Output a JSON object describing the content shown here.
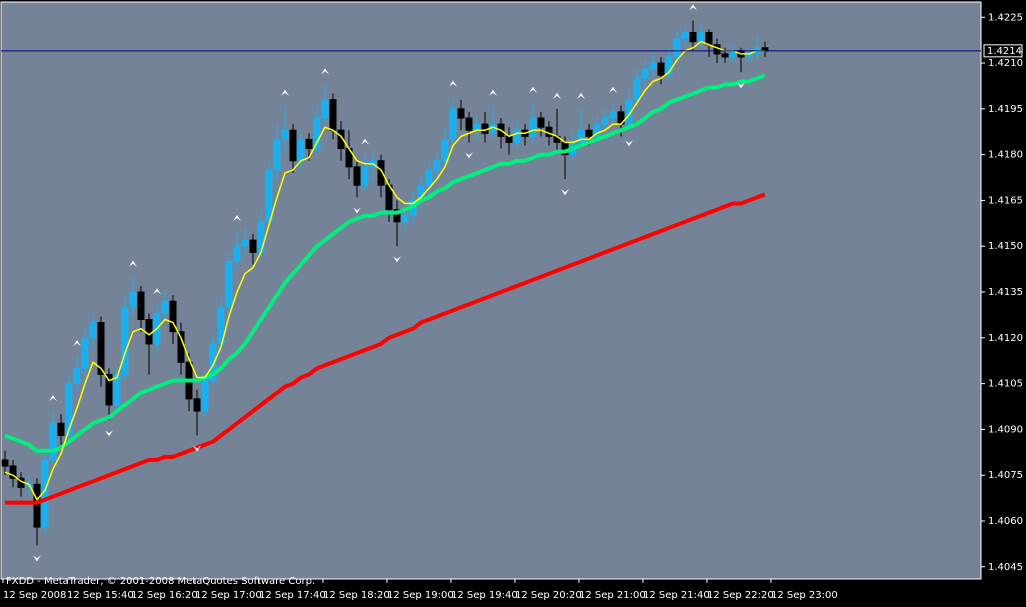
{
  "chart_data": {
    "type": "candlestick",
    "footer": "FXDD - MetaTrader, © 2001-2008 MetaQuotes Software Corp.",
    "x_labels": [
      "12 Sep 2008",
      "12 Sep 15:40",
      "12 Sep 16:20",
      "12 Sep 17:00",
      "12 Sep 17:40",
      "12 Sep 18:20",
      "12 Sep 19:00",
      "12 Sep 19:40",
      "12 Sep 20:20",
      "12 Sep 21:00",
      "12 Sep 21:40",
      "12 Sep 22:20",
      "12 Sep 23:00"
    ],
    "ylim": [
      1.4041,
      1.423
    ],
    "yticks": [
      1.4225,
      {
        "value": 1.421,
        "label": "1.4210"
      },
      1.4195,
      {
        "value": 1.418,
        "label": "1.4180"
      },
      1.4165,
      {
        "value": 1.415,
        "label": "1.4150"
      },
      1.4135,
      {
        "value": 1.412,
        "label": "1.4120"
      },
      1.4105,
      {
        "value": 1.409,
        "label": "1.4090"
      },
      1.4075,
      {
        "value": 1.406,
        "label": "1.4060"
      },
      1.4045
    ],
    "current_price": 1.4214,
    "current_price_color": "#000080",
    "up_color": "#1ab0f0",
    "down_color": "#000000",
    "ohlc": [
      [
        1.408,
        1.4083,
        1.4075,
        1.4078
      ],
      [
        1.4078,
        1.408,
        1.4071,
        1.4074
      ],
      [
        1.4074,
        1.4076,
        1.4068,
        1.4071
      ],
      [
        1.4071,
        1.4075,
        1.4068,
        1.4072
      ],
      [
        1.4072,
        1.4074,
        1.4052,
        1.4058
      ],
      [
        1.4058,
        1.4083,
        1.4056,
        1.408
      ],
      [
        1.408,
        1.4096,
        1.4078,
        1.4092
      ],
      [
        1.4092,
        1.4095,
        1.4085,
        1.4088
      ],
      [
        1.4088,
        1.4108,
        1.4086,
        1.4105
      ],
      [
        1.4105,
        1.4114,
        1.4102,
        1.411
      ],
      [
        1.411,
        1.4124,
        1.4107,
        1.412
      ],
      [
        1.412,
        1.4128,
        1.4116,
        1.4125
      ],
      [
        1.4125,
        1.4127,
        1.4104,
        1.4108
      ],
      [
        1.4108,
        1.411,
        1.4093,
        1.4098
      ],
      [
        1.4098,
        1.4111,
        1.4095,
        1.4108
      ],
      [
        1.4108,
        1.4134,
        1.4106,
        1.413
      ],
      [
        1.413,
        1.414,
        1.4127,
        1.4135
      ],
      [
        1.4135,
        1.4137,
        1.4122,
        1.4126
      ],
      [
        1.4126,
        1.4128,
        1.4108,
        1.4118
      ],
      [
        1.4118,
        1.4131,
        1.4115,
        1.4128
      ],
      [
        1.4128,
        1.4136,
        1.4125,
        1.4132
      ],
      [
        1.4132,
        1.4134,
        1.4118,
        1.4122
      ],
      [
        1.4122,
        1.4125,
        1.4108,
        1.4112
      ],
      [
        1.4112,
        1.4115,
        1.4096,
        1.41
      ],
      [
        1.41,
        1.4103,
        1.4088,
        1.4096
      ],
      [
        1.4096,
        1.4109,
        1.4094,
        1.4106
      ],
      [
        1.4106,
        1.4121,
        1.4104,
        1.4118
      ],
      [
        1.4118,
        1.4133,
        1.4115,
        1.413
      ],
      [
        1.413,
        1.4148,
        1.4128,
        1.4145
      ],
      [
        1.4145,
        1.4155,
        1.4142,
        1.415
      ],
      [
        1.415,
        1.4156,
        1.4147,
        1.4152
      ],
      [
        1.4152,
        1.4154,
        1.4144,
        1.4148
      ],
      [
        1.4148,
        1.4162,
        1.4146,
        1.4158
      ],
      [
        1.4158,
        1.4178,
        1.4156,
        1.4175
      ],
      [
        1.4175,
        1.419,
        1.4172,
        1.4185
      ],
      [
        1.4185,
        1.4196,
        1.418,
        1.4188
      ],
      [
        1.4188,
        1.419,
        1.4174,
        1.4178
      ],
      [
        1.4178,
        1.4188,
        1.4175,
        1.4185
      ],
      [
        1.4185,
        1.4187,
        1.4178,
        1.4182
      ],
      [
        1.4182,
        1.4196,
        1.418,
        1.4192
      ],
      [
        1.4192,
        1.4203,
        1.4189,
        1.4198
      ],
      [
        1.4198,
        1.42,
        1.4185,
        1.4188
      ],
      [
        1.4188,
        1.4191,
        1.4178,
        1.4182
      ],
      [
        1.4182,
        1.4188,
        1.4172,
        1.4176
      ],
      [
        1.4176,
        1.4178,
        1.4166,
        1.417
      ],
      [
        1.417,
        1.418,
        1.4168,
        1.4176
      ],
      [
        1.4176,
        1.4181,
        1.4172,
        1.4178
      ],
      [
        1.4178,
        1.418,
        1.4166,
        1.417
      ],
      [
        1.417,
        1.4172,
        1.4158,
        1.4162
      ],
      [
        1.4162,
        1.4165,
        1.415,
        1.4158
      ],
      [
        1.4158,
        1.4163,
        1.4155,
        1.416
      ],
      [
        1.416,
        1.4168,
        1.4157,
        1.4165
      ],
      [
        1.4165,
        1.4173,
        1.4162,
        1.417
      ],
      [
        1.417,
        1.4178,
        1.4167,
        1.4175
      ],
      [
        1.4175,
        1.4181,
        1.4172,
        1.4178
      ],
      [
        1.4178,
        1.4189,
        1.4176,
        1.4185
      ],
      [
        1.4185,
        1.4199,
        1.4183,
        1.4195
      ],
      [
        1.4195,
        1.4198,
        1.4188,
        1.4192
      ],
      [
        1.4192,
        1.4194,
        1.4184,
        1.4188
      ],
      [
        1.4188,
        1.4193,
        1.4185,
        1.419
      ],
      [
        1.419,
        1.4194,
        1.4184,
        1.4187
      ],
      [
        1.4187,
        1.4196,
        1.4185,
        1.419
      ],
      [
        1.419,
        1.4192,
        1.4182,
        1.4186
      ],
      [
        1.4186,
        1.4189,
        1.418,
        1.4184
      ],
      [
        1.4184,
        1.4191,
        1.4182,
        1.4188
      ],
      [
        1.4188,
        1.419,
        1.4183,
        1.4186
      ],
      [
        1.4186,
        1.4197,
        1.4184,
        1.4192
      ],
      [
        1.4192,
        1.4194,
        1.4186,
        1.4189
      ],
      [
        1.4189,
        1.4191,
        1.4183,
        1.4186
      ],
      [
        1.4186,
        1.4195,
        1.4181,
        1.4184
      ],
      [
        1.4184,
        1.4186,
        1.4172,
        1.418
      ],
      [
        1.418,
        1.4187,
        1.4178,
        1.4184
      ],
      [
        1.4184,
        1.4195,
        1.4182,
        1.4188
      ],
      [
        1.4188,
        1.419,
        1.4183,
        1.4186
      ],
      [
        1.4186,
        1.4193,
        1.4184,
        1.419
      ],
      [
        1.419,
        1.4195,
        1.4188,
        1.4192
      ],
      [
        1.4192,
        1.4197,
        1.419,
        1.4194
      ],
      [
        1.4194,
        1.4196,
        1.4186,
        1.419
      ],
      [
        1.419,
        1.4201,
        1.4188,
        1.4198
      ],
      [
        1.4198,
        1.4208,
        1.4196,
        1.4205
      ],
      [
        1.4205,
        1.4211,
        1.4202,
        1.4208
      ],
      [
        1.4208,
        1.4213,
        1.4205,
        1.421
      ],
      [
        1.421,
        1.4212,
        1.4203,
        1.4206
      ],
      [
        1.4206,
        1.4215,
        1.4204,
        1.4212
      ],
      [
        1.4212,
        1.4221,
        1.421,
        1.4218
      ],
      [
        1.4218,
        1.4222,
        1.4215,
        1.422
      ],
      [
        1.422,
        1.4224,
        1.4214,
        1.4217
      ],
      [
        1.4217,
        1.4223,
        1.4215,
        1.422
      ],
      [
        1.422,
        1.4221,
        1.4212,
        1.4216
      ],
      [
        1.4216,
        1.4218,
        1.421,
        1.4213
      ],
      [
        1.4213,
        1.4215,
        1.421,
        1.4212
      ],
      [
        1.4212,
        1.4216,
        1.421,
        1.4214
      ],
      [
        1.4214,
        1.4215,
        1.4207,
        1.4212
      ],
      [
        1.4212,
        1.4215,
        1.421,
        1.4213
      ],
      [
        1.4213,
        1.4219,
        1.4211,
        1.4215
      ],
      [
        1.4215,
        1.4217,
        1.4212,
        1.4214
      ]
    ],
    "fractals_up": [
      6,
      9,
      16,
      19,
      29,
      35,
      40,
      45,
      56,
      61,
      66,
      69,
      72,
      76,
      86
    ],
    "fractals_down": [
      4,
      13,
      24,
      44,
      49,
      58,
      70,
      78,
      92
    ],
    "series": [
      {
        "color": "#ff0000",
        "width": 4,
        "values": [
          1.4066,
          1.4066,
          1.4066,
          1.4066,
          1.4066,
          1.4067,
          1.4068,
          1.4069,
          1.407,
          1.4071,
          1.4072,
          1.4073,
          1.4074,
          1.4075,
          1.4076,
          1.4077,
          1.4078,
          1.4079,
          1.408,
          1.408,
          1.4081,
          1.4081,
          1.4082,
          1.4083,
          1.4084,
          1.4085,
          1.4086,
          1.4088,
          1.409,
          1.4092,
          1.4094,
          1.4096,
          1.4098,
          1.41,
          1.4102,
          1.4104,
          1.4105,
          1.4107,
          1.4108,
          1.411,
          1.4111,
          1.4112,
          1.4113,
          1.4114,
          1.4115,
          1.4116,
          1.4117,
          1.4118,
          1.412,
          1.4121,
          1.4122,
          1.4123,
          1.4125,
          1.4126,
          1.4127,
          1.4128,
          1.4129,
          1.413,
          1.4131,
          1.4132,
          1.4133,
          1.4134,
          1.4135,
          1.4136,
          1.4137,
          1.4138,
          1.4139,
          1.414,
          1.4141,
          1.4142,
          1.4143,
          1.4144,
          1.4145,
          1.4146,
          1.4147,
          1.4148,
          1.4149,
          1.415,
          1.4151,
          1.4152,
          1.4153,
          1.4154,
          1.4155,
          1.4156,
          1.4157,
          1.4158,
          1.4159,
          1.416,
          1.4161,
          1.4162,
          1.4163,
          1.4164,
          1.4164,
          1.4165,
          1.4166,
          1.4167
        ]
      },
      {
        "color": "#00f080",
        "width": 4,
        "values": [
          1.4088,
          1.4087,
          1.4086,
          1.4085,
          1.4083,
          1.4083,
          1.4083,
          1.4084,
          1.4086,
          1.4088,
          1.409,
          1.4092,
          1.4093,
          1.4094,
          1.4096,
          1.4098,
          1.41,
          1.4102,
          1.4103,
          1.4104,
          1.4105,
          1.4106,
          1.4106,
          1.4106,
          1.4106,
          1.4107,
          1.4108,
          1.411,
          1.4113,
          1.4115,
          1.4118,
          1.4122,
          1.4126,
          1.413,
          1.4134,
          1.4138,
          1.4141,
          1.4144,
          1.4147,
          1.415,
          1.4152,
          1.4154,
          1.4156,
          1.4158,
          1.4159,
          1.416,
          1.416,
          1.4161,
          1.4161,
          1.4161,
          1.4162,
          1.4163,
          1.4165,
          1.4166,
          1.4168,
          1.4169,
          1.4171,
          1.4172,
          1.4173,
          1.4174,
          1.4175,
          1.4176,
          1.4177,
          1.4177,
          1.4178,
          1.4178,
          1.4179,
          1.418,
          1.418,
          1.4181,
          1.4181,
          1.4182,
          1.4183,
          1.4184,
          1.4185,
          1.4186,
          1.4187,
          1.4188,
          1.4189,
          1.419,
          1.4192,
          1.4194,
          1.4195,
          1.4197,
          1.4198,
          1.4199,
          1.42,
          1.4201,
          1.4202,
          1.4202,
          1.4203,
          1.4203,
          1.4204,
          1.4204,
          1.4205,
          1.4206
        ]
      },
      {
        "color": "#ffff00",
        "width": 1.5,
        "values": [
          1.4076,
          1.4075,
          1.4073,
          1.4072,
          1.4067,
          1.407,
          1.4077,
          1.4082,
          1.409,
          1.4097,
          1.4105,
          1.4112,
          1.411,
          1.4106,
          1.4107,
          1.4115,
          1.4122,
          1.4123,
          1.4121,
          1.4123,
          1.4126,
          1.4125,
          1.412,
          1.4113,
          1.4107,
          1.4107,
          1.4111,
          1.4117,
          1.4127,
          1.4135,
          1.4141,
          1.4143,
          1.4148,
          1.4157,
          1.4166,
          1.4174,
          1.4175,
          1.4178,
          1.4179,
          1.4184,
          1.4189,
          1.4188,
          1.4186,
          1.4182,
          1.4178,
          1.4177,
          1.4177,
          1.4175,
          1.417,
          1.4166,
          1.4164,
          1.4164,
          1.4166,
          1.4169,
          1.4172,
          1.4176,
          1.4183,
          1.4186,
          1.4187,
          1.4188,
          1.4188,
          1.4189,
          1.4188,
          1.4186,
          1.4187,
          1.4187,
          1.4188,
          1.4188,
          1.4187,
          1.4186,
          1.4184,
          1.4184,
          1.4185,
          1.4185,
          1.4187,
          1.4188,
          1.419,
          1.419,
          1.4193,
          1.4197,
          1.4201,
          1.4204,
          1.4205,
          1.4207,
          1.4211,
          1.4214,
          1.4215,
          1.4217,
          1.4216,
          1.4215,
          1.4214,
          1.4214,
          1.4213,
          1.4213,
          1.4214,
          1.4214
        ]
      }
    ]
  }
}
